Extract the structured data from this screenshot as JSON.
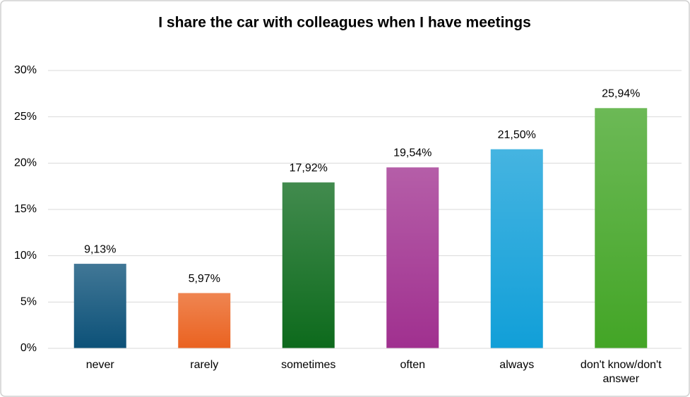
{
  "chart_data": {
    "type": "bar",
    "title": "I share the car with colleagues when I have meetings",
    "categories": [
      "never",
      "rarely",
      "sometimes",
      "often",
      "always",
      "don't know/don't answer"
    ],
    "values": [
      9.13,
      5.97,
      17.92,
      19.54,
      21.5,
      25.94
    ],
    "value_labels": [
      "9,13%",
      "5,97%",
      "17,92%",
      "19,54%",
      "21,50%",
      "25,94%"
    ],
    "colors": [
      "#0c5178",
      "#ea6220",
      "#0d6a1c",
      "#a0308f",
      "#119fd8",
      "#43a526"
    ],
    "ylim": [
      0,
      30
    ],
    "yticks": [
      {
        "value": 0,
        "label": "0%"
      },
      {
        "value": 5,
        "label": "5%"
      },
      {
        "value": 10,
        "label": "10%"
      },
      {
        "value": 15,
        "label": "15%"
      },
      {
        "value": 20,
        "label": "20%"
      },
      {
        "value": 25,
        "label": "25%"
      },
      {
        "value": 30,
        "label": "30%"
      }
    ],
    "grid": true
  }
}
